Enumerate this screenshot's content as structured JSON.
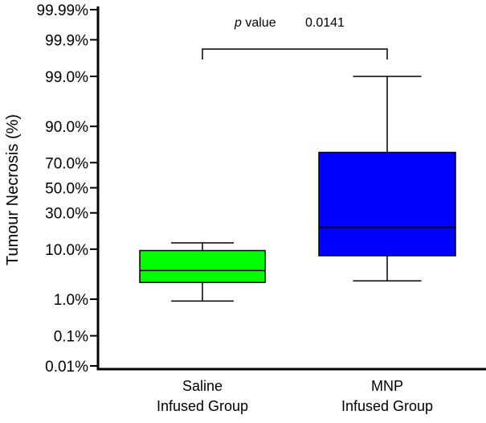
{
  "chart_data": {
    "type": "box",
    "title": "",
    "xlabel": "",
    "ylabel": "Tumour Necrosis (%)",
    "y_scale": "probit",
    "y_ticks": [
      {
        "value": 0.01,
        "label": "0.01%"
      },
      {
        "value": 0.1,
        "label": "0.1%"
      },
      {
        "value": 1.0,
        "label": "1.0%"
      },
      {
        "value": 10.0,
        "label": "10.0%"
      },
      {
        "value": 30.0,
        "label": "30.0%"
      },
      {
        "value": 50.0,
        "label": "50.0%"
      },
      {
        "value": 70.0,
        "label": "70.0%"
      },
      {
        "value": 90.0,
        "label": "90.0%"
      },
      {
        "value": 99.0,
        "label": "99.0%"
      },
      {
        "value": 99.9,
        "label": "99.9%"
      },
      {
        "value": 99.99,
        "label": "99.99%"
      }
    ],
    "categories": [
      {
        "line1": "Saline",
        "line2": "Infused Group"
      },
      {
        "line1": "MNP",
        "line2": "Infused Group"
      }
    ],
    "boxes": [
      {
        "name": "Saline Infused Group",
        "min": 0.9,
        "q1": 2.4,
        "median": 4.2,
        "q3": 9.5,
        "max": 12.5,
        "color": "#00ff00"
      },
      {
        "name": "MNP Infused Group",
        "min": 2.6,
        "q1": 7.8,
        "median": 20.5,
        "q3": 77.0,
        "max": 99.0,
        "color": "#0000ff"
      }
    ],
    "annotation": {
      "italic": "p",
      "text": " value",
      "value": "0.0141"
    }
  }
}
